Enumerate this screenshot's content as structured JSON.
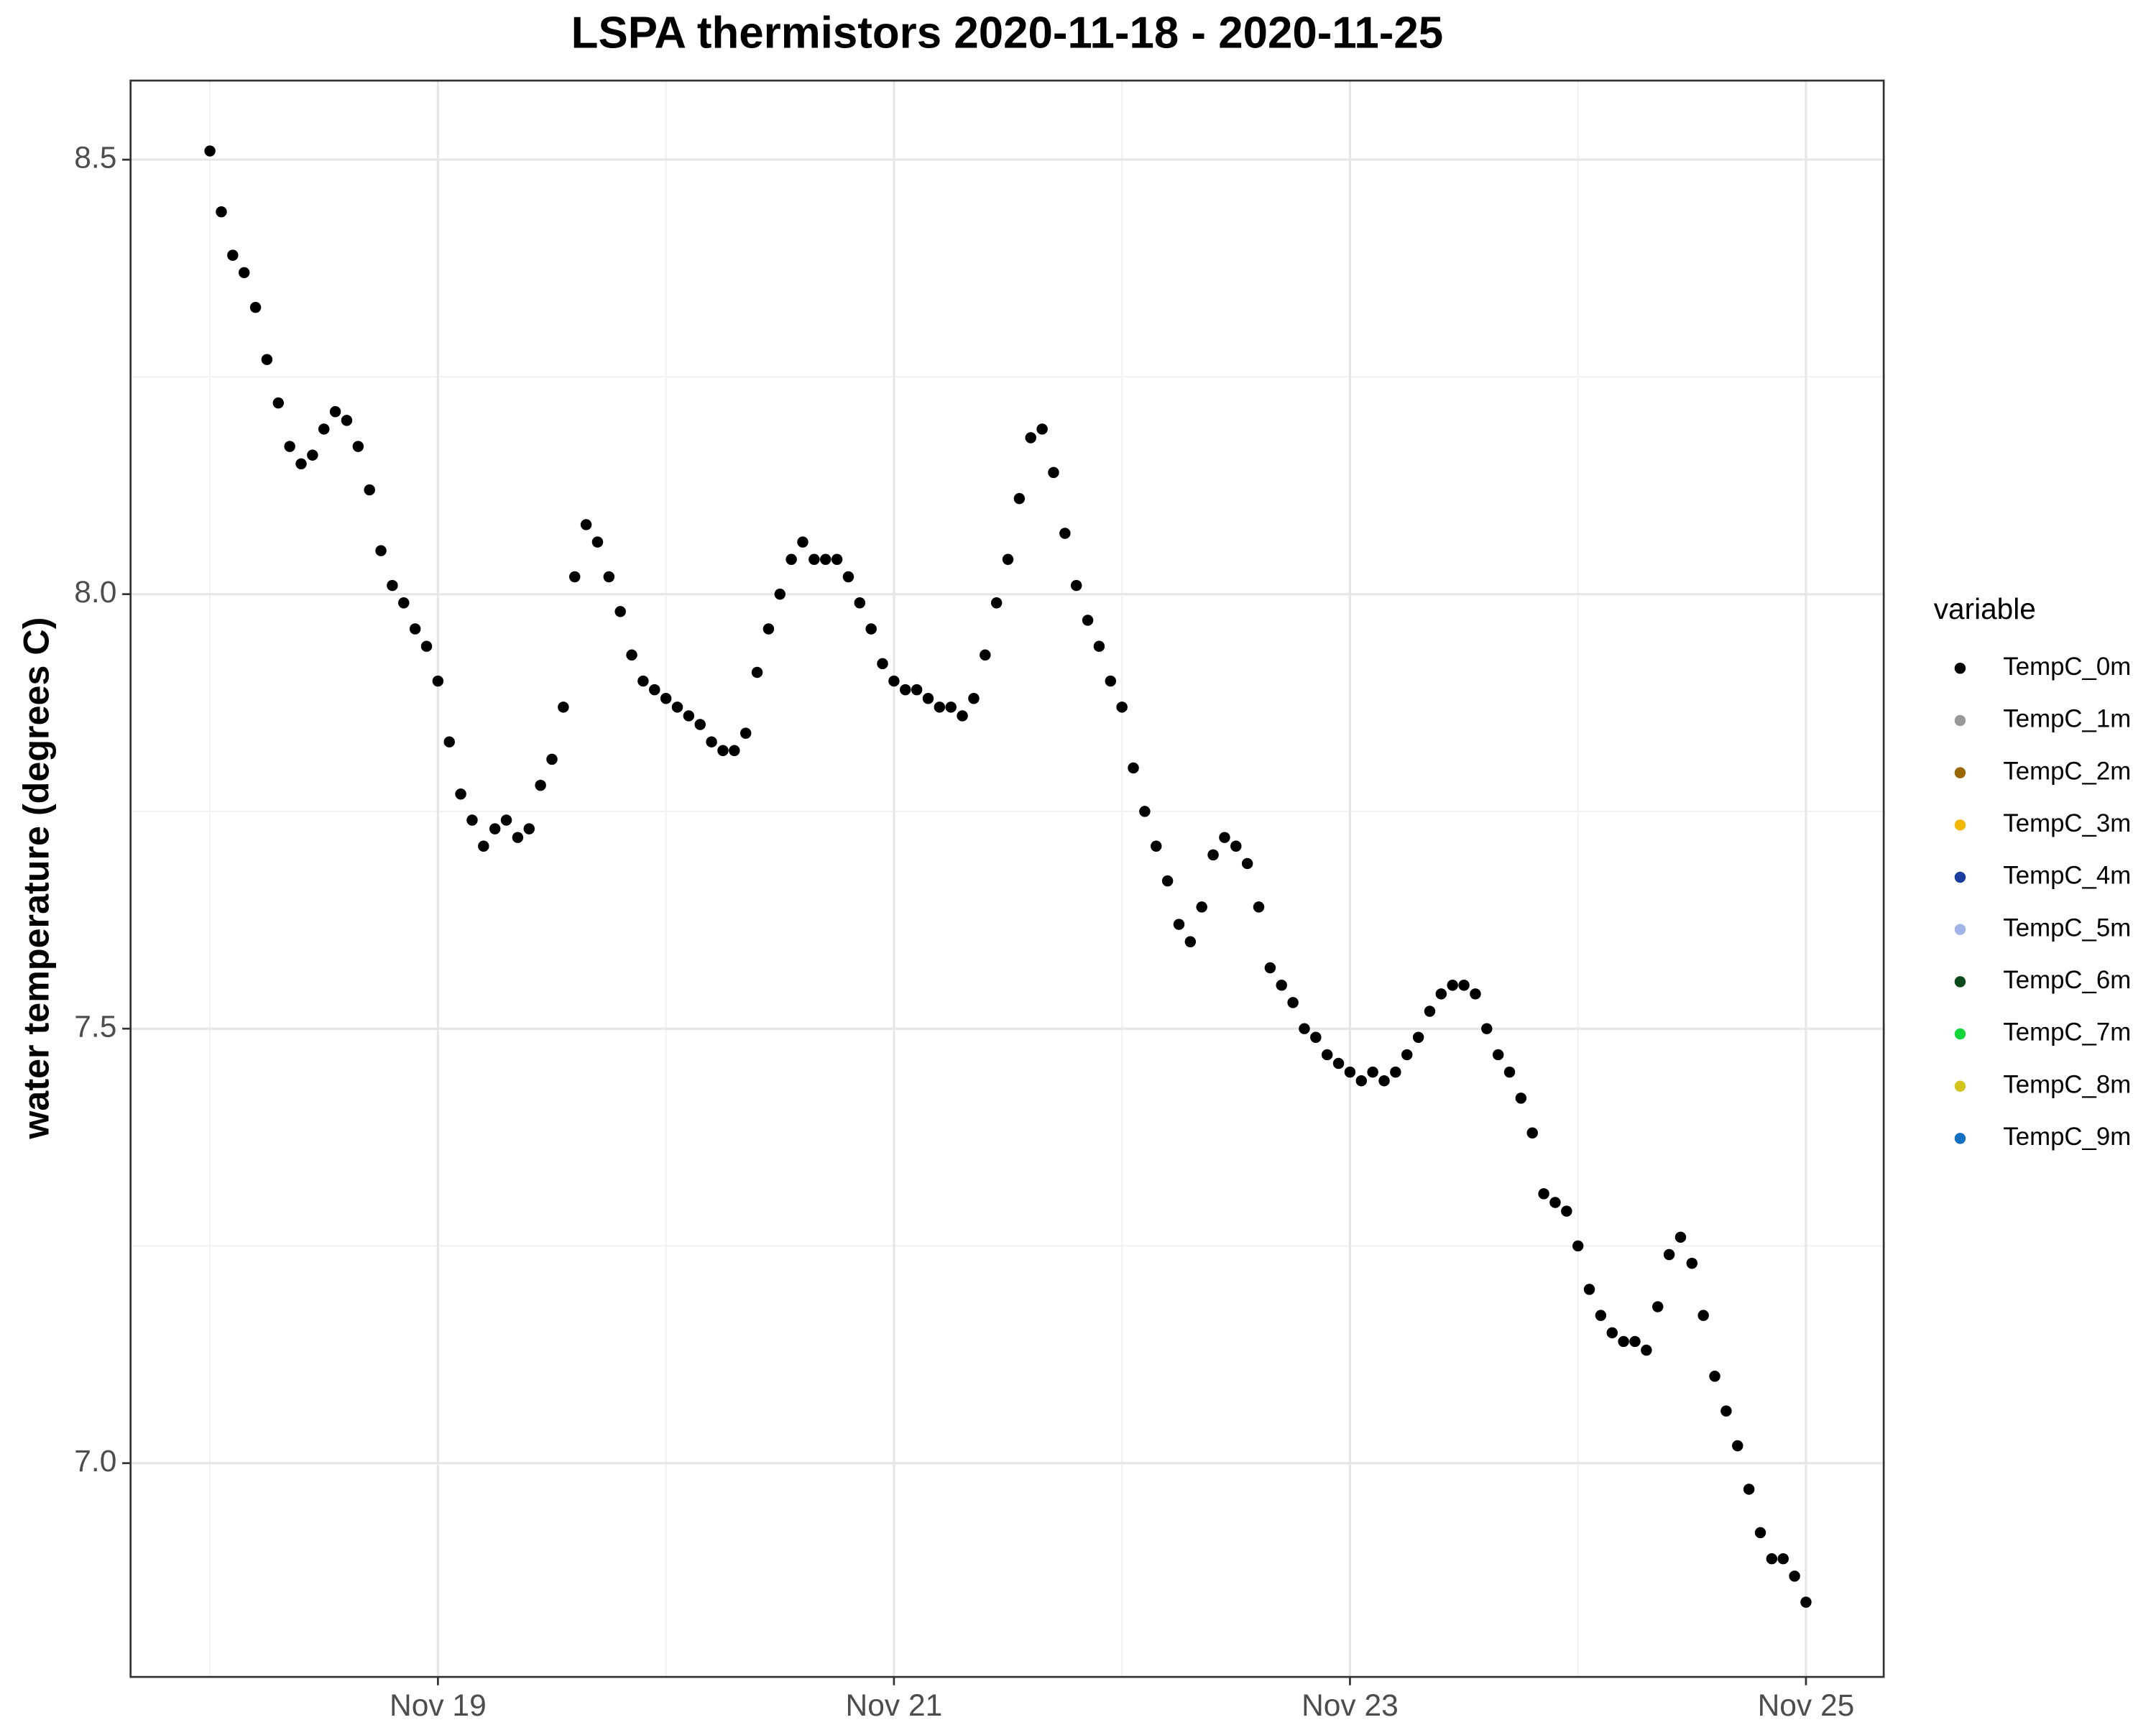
{
  "chart_data": {
    "type": "scatter",
    "title": "LSPA thermistors 2020-11-18 - 2020-11-25",
    "y_label": "water temperature (degrees C)",
    "legend_title": "variable",
    "legend_position": "right",
    "grid": true,
    "xlim": [
      17.652,
      25.341
    ],
    "ylim": [
      6.754,
      8.591
    ],
    "xticks": [
      {
        "value": 19,
        "label": "Nov 19"
      },
      {
        "value": 21,
        "label": "Nov 21"
      },
      {
        "value": 23,
        "label": "Nov 23"
      },
      {
        "value": 25,
        "label": "Nov 25"
      }
    ],
    "yticks": [
      {
        "value": 7,
        "label": "7.0"
      },
      {
        "value": 7.5,
        "label": "7.5"
      },
      {
        "value": 8,
        "label": "8.0"
      },
      {
        "value": 8.5,
        "label": "8.5"
      }
    ],
    "x_minor_grid": [
      18,
      20,
      22,
      24
    ],
    "y_minor_grid": [
      7.25,
      7.75,
      8.25
    ],
    "x": [
      18.0,
      18.05,
      18.1,
      18.15,
      18.2,
      18.25,
      18.3,
      18.35,
      18.4,
      18.45,
      18.5,
      18.55,
      18.6,
      18.65,
      18.7,
      18.75,
      18.8,
      18.85,
      18.9,
      18.95,
      19.0,
      19.05,
      19.1,
      19.15,
      19.2,
      19.25,
      19.3,
      19.35,
      19.4,
      19.45,
      19.5,
      19.55,
      19.6,
      19.65,
      19.7,
      19.75,
      19.8,
      19.85,
      19.9,
      19.95,
      20.0,
      20.05,
      20.1,
      20.15,
      20.2,
      20.25,
      20.3,
      20.35,
      20.4,
      20.45,
      20.5,
      20.55,
      20.6,
      20.65,
      20.7,
      20.75,
      20.8,
      20.85,
      20.9,
      20.95,
      21.0,
      21.05,
      21.1,
      21.15,
      21.2,
      21.25,
      21.3,
      21.35,
      21.4,
      21.45,
      21.5,
      21.55,
      21.6,
      21.65,
      21.7,
      21.75,
      21.8,
      21.85,
      21.9,
      21.95,
      22.0,
      22.05,
      22.1,
      22.15,
      22.2,
      22.25,
      22.3,
      22.35,
      22.4,
      22.45,
      22.5,
      22.55,
      22.6,
      22.65,
      22.7,
      22.75,
      22.8,
      22.85,
      22.9,
      22.95,
      23.0,
      23.05,
      23.1,
      23.15,
      23.2,
      23.25,
      23.3,
      23.35,
      23.4,
      23.45,
      23.5,
      23.55,
      23.6,
      23.65,
      23.7,
      23.75,
      23.8,
      23.85,
      23.9,
      23.95,
      24.0,
      24.05,
      24.1,
      24.15,
      24.2,
      24.25,
      24.3,
      24.35,
      24.4,
      24.45,
      24.5,
      24.55,
      24.6,
      24.65,
      24.7,
      24.75,
      24.8,
      24.85,
      24.9,
      24.95,
      25.0
    ],
    "series": [
      {
        "name": "TempC_0m",
        "color": "#000000",
        "values": [
          8.51,
          8.44,
          8.39,
          8.37,
          8.33,
          8.27,
          8.22,
          8.17,
          8.15,
          8.16,
          8.19,
          8.21,
          8.2,
          8.17,
          8.12,
          8.05,
          8.01,
          7.99,
          7.96,
          7.94,
          7.9,
          7.83,
          7.77,
          7.74,
          7.71,
          7.73,
          7.74,
          7.72,
          7.73,
          7.78,
          7.81,
          7.87,
          8.02,
          8.08,
          8.06,
          8.02,
          7.98,
          7.93,
          7.9,
          7.89,
          7.88,
          7.87,
          7.86,
          7.85,
          7.83,
          7.82,
          7.82,
          7.84,
          7.91,
          7.96,
          8.0,
          8.04,
          8.06,
          8.04,
          8.04,
          8.04,
          8.02,
          7.99,
          7.96,
          7.92,
          7.9,
          7.89,
          7.89,
          7.88,
          7.87,
          7.87,
          7.86,
          7.88,
          7.93,
          7.99,
          8.04,
          8.11,
          8.18,
          8.19,
          8.14,
          8.07,
          8.01,
          7.97,
          7.94,
          7.9,
          7.87,
          7.8,
          7.75,
          7.71,
          7.67,
          7.62,
          7.6,
          7.64,
          7.7,
          7.72,
          7.71,
          7.69,
          7.64,
          7.57,
          7.55,
          7.53,
          7.5,
          7.49,
          7.47,
          7.46,
          7.45,
          7.44,
          7.45,
          7.44,
          7.45,
          7.47,
          7.49,
          7.52,
          7.54,
          7.55,
          7.55,
          7.54,
          7.5,
          7.47,
          7.45,
          7.42,
          7.38,
          7.31,
          7.3,
          7.29,
          7.25,
          7.2,
          7.17,
          7.15,
          7.14,
          7.14,
          7.13,
          7.18,
          7.24,
          7.26,
          7.23,
          7.17,
          7.1,
          7.06,
          7.02,
          6.97,
          6.92,
          6.89,
          6.89,
          6.87,
          6.84
        ]
      },
      {
        "name": "TempC_1m",
        "color": "#999999",
        "values": []
      },
      {
        "name": "TempC_2m",
        "color": "#996600",
        "values": []
      },
      {
        "name": "TempC_3m",
        "color": "#f5b800",
        "values": []
      },
      {
        "name": "TempC_4m",
        "color": "#1a3ea0",
        "values": []
      },
      {
        "name": "TempC_5m",
        "color": "#a0b4e8",
        "values": []
      },
      {
        "name": "TempC_6m",
        "color": "#0b4a1a",
        "values": []
      },
      {
        "name": "TempC_7m",
        "color": "#13d63a",
        "values": []
      },
      {
        "name": "TempC_8m",
        "color": "#d4c41a",
        "values": []
      },
      {
        "name": "TempC_9m",
        "color": "#1170c0",
        "values": []
      }
    ]
  }
}
